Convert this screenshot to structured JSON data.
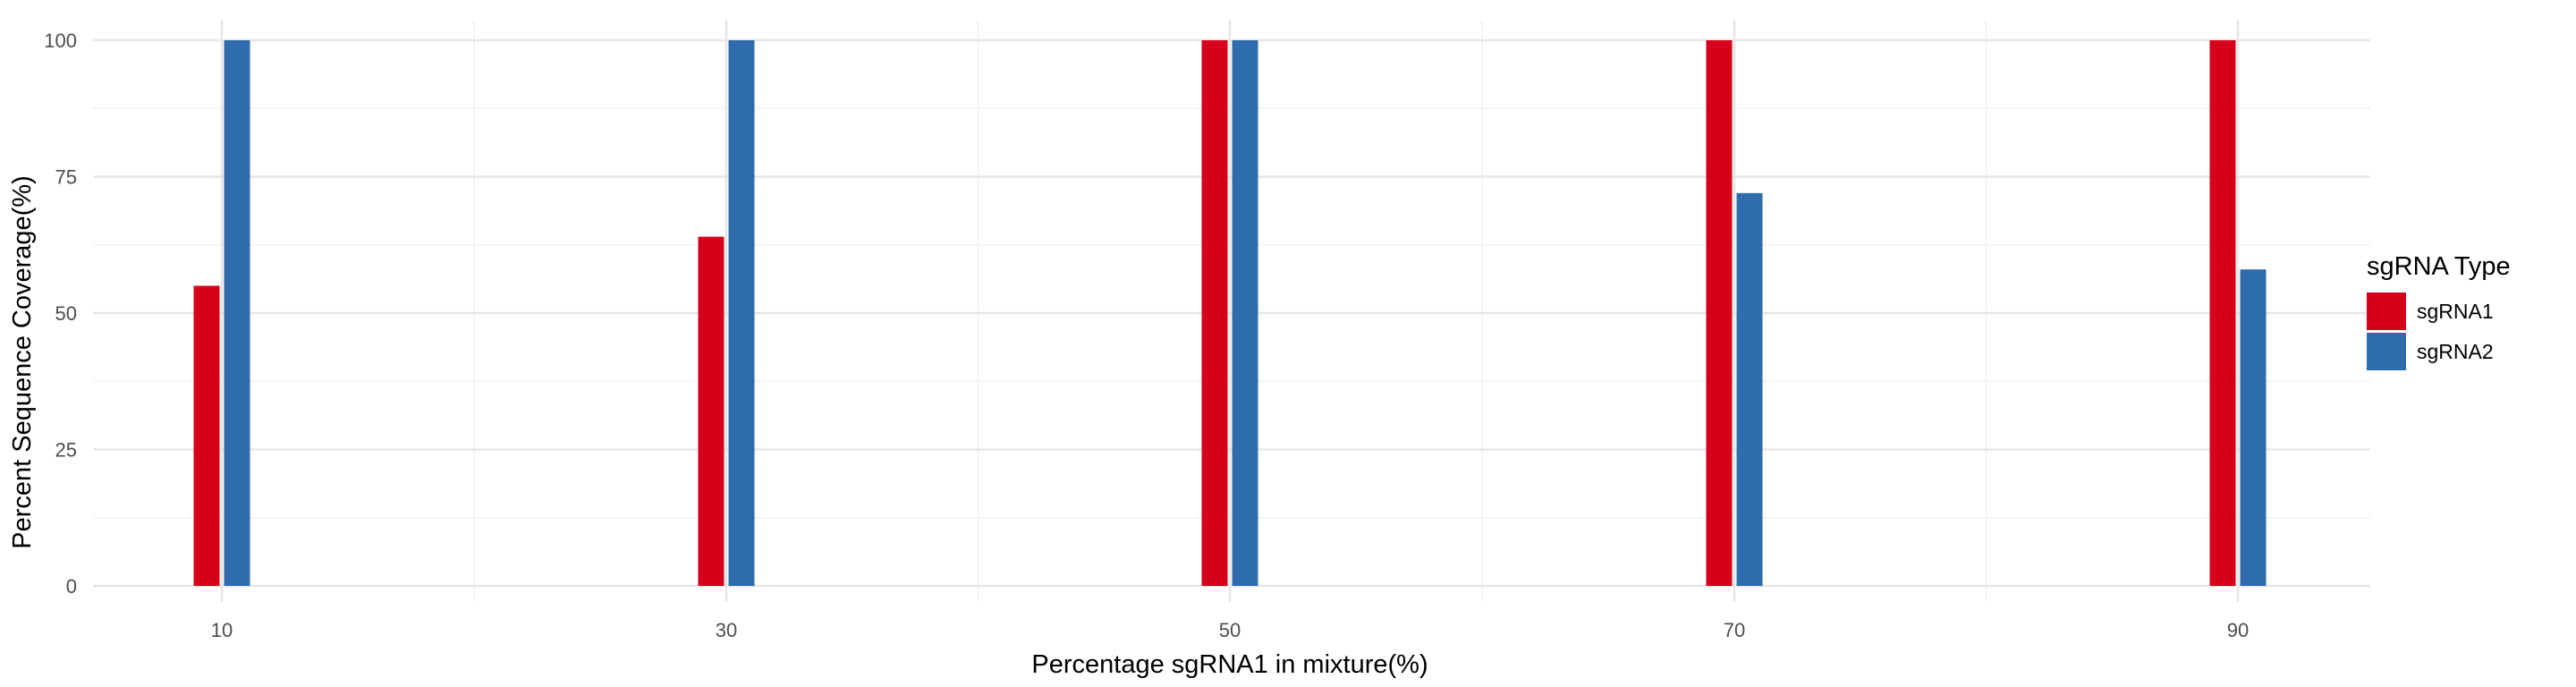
{
  "chart_data": {
    "type": "bar",
    "xlabel": "Percentage sgRNA1 in mixture(%)",
    "ylabel": "Percent Sequence Coverage(%)",
    "categories": [
      "10",
      "30",
      "50",
      "70",
      "90"
    ],
    "series": [
      {
        "name": "sgRNA1",
        "color": "#d7001a",
        "values": [
          55,
          64,
          100,
          100,
          100
        ]
      },
      {
        "name": "sgRNA2",
        "color": "#2e6cad",
        "values": [
          100,
          100,
          100,
          72,
          58
        ]
      }
    ],
    "ylim": [
      0,
      100
    ],
    "yticks": [
      0,
      25,
      50,
      75,
      100
    ],
    "grid": true,
    "legend": {
      "title": "sgRNA Type",
      "placement": "right"
    }
  }
}
